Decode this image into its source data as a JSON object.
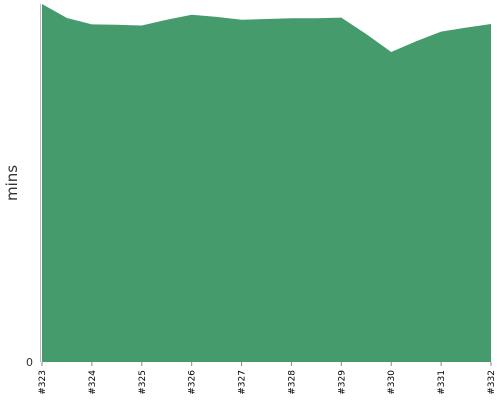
{
  "chart_data": {
    "type": "area",
    "title": "",
    "xlabel": "",
    "ylabel": "mins",
    "categories": [
      "#323",
      "#324",
      "#325",
      "#326",
      "#327",
      "#328",
      "#329",
      "#330",
      "#331",
      "#332"
    ],
    "x": [
      "#323",
      "#323.5",
      "#324",
      "#324.5",
      "#325",
      "#325.5",
      "#326",
      "#326.5",
      "#327",
      "#327.5",
      "#328",
      "#328.5",
      "#329",
      "#329.5",
      "#330",
      "#330.5",
      "#331",
      "#331.5",
      "#332"
    ],
    "series": [
      {
        "values": [
          100,
          96.1,
          94.3,
          94.2,
          94.0,
          95.6,
          97.0,
          96.4,
          95.6,
          95.8,
          96.0,
          96.0,
          96.2,
          91.6,
          86.6,
          89.6,
          92.3,
          93.4,
          94.4
        ]
      }
    ],
    "ylim": [
      0,
      100
    ],
    "y_ticks": [
      "0"
    ],
    "grid": false,
    "legend": "none",
    "colors": {
      "fill": "#459b6c",
      "axis": "#bbbbbb"
    }
  }
}
